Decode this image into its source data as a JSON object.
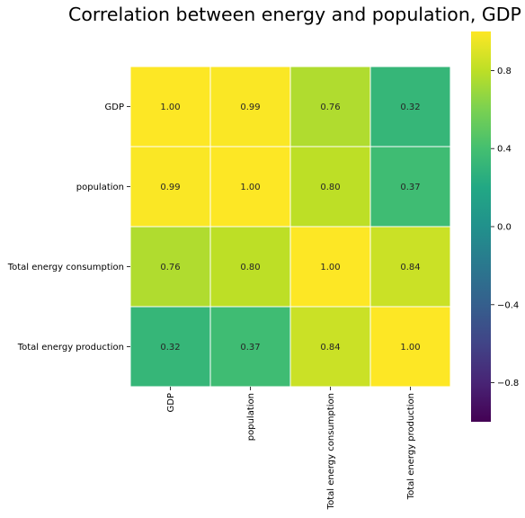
{
  "chart_data": {
    "type": "heatmap",
    "title": "Correlation between energy and population, GDP",
    "row_labels": [
      "GDP",
      "population",
      "Total energy consumption",
      "Total energy production"
    ],
    "col_labels": [
      "GDP",
      "population",
      "Total energy consumption",
      "Total energy production"
    ],
    "values": [
      [
        1.0,
        0.99,
        0.76,
        0.32
      ],
      [
        0.99,
        1.0,
        0.8,
        0.37
      ],
      [
        0.76,
        0.8,
        1.0,
        0.84
      ],
      [
        0.32,
        0.37,
        0.84,
        1.0
      ]
    ],
    "cell_labels": [
      [
        "1.00",
        "0.99",
        "0.76",
        "0.32"
      ],
      [
        "0.99",
        "1.00",
        "0.80",
        "0.37"
      ],
      [
        "0.76",
        "0.80",
        "1.00",
        "0.84"
      ],
      [
        "0.32",
        "0.37",
        "0.84",
        "1.00"
      ]
    ],
    "colormap": "viridis",
    "vmin": -1.0,
    "vmax": 1.0,
    "colorbar_ticks": [
      "0.8",
      "0.4",
      "0.0",
      "−0.4",
      "−0.8"
    ],
    "colorbar_tick_values": [
      0.8,
      0.4,
      0.0,
      -0.4,
      -0.8
    ],
    "cell_border_color": "#ffffff"
  }
}
